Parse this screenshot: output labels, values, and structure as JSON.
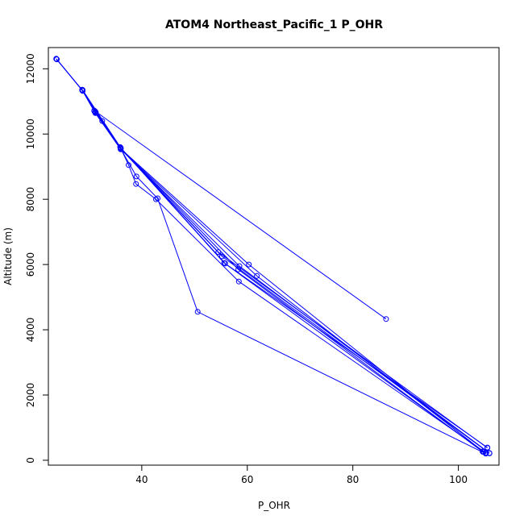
{
  "chart_data": {
    "type": "line",
    "title": "ATOM4 Northeast_Pacific_1 P_OHR",
    "xlabel": "P_OHR",
    "ylabel": "Altitude (m)",
    "xlim": [
      22.3,
      107.7
    ],
    "ylim": [
      -150,
      12650
    ],
    "x_ticks": [
      40,
      60,
      80,
      100
    ],
    "y_ticks": [
      0,
      2000,
      4000,
      6000,
      8000,
      10000,
      12000
    ],
    "grid": false,
    "series_color": "#0000ff",
    "marker": "open-circle",
    "series": [
      {
        "x": [
          23.8,
          28.7,
          31.2,
          36.0,
          39.0,
          43.0,
          50.6,
          105.2
        ],
        "y": [
          12300,
          11350,
          10650,
          9550,
          8700,
          8030,
          4550,
          200
        ]
      },
      {
        "x": [
          105.2,
          58.4,
          42.7,
          38.9,
          37.5,
          35.9,
          32.5,
          31.0,
          28.8,
          23.8
        ],
        "y": [
          230,
          5480,
          8000,
          8470,
          9050,
          9600,
          10400,
          10700,
          11320,
          12310
        ]
      },
      {
        "x": [
          23.9,
          28.8,
          31.3,
          36.0,
          55.6,
          104.8
        ],
        "y": [
          12290,
          11330,
          10660,
          9570,
          6050,
          250
        ]
      },
      {
        "x": [
          104.8,
          61.8,
          36.0,
          31.2,
          28.7
        ],
        "y": [
          260,
          5650,
          9530,
          10640,
          11360
        ]
      },
      {
        "x": [
          28.7,
          36.0,
          58.3,
          104.6
        ],
        "y": [
          11340,
          9560,
          5850,
          260
        ]
      },
      {
        "x": [
          104.6,
          60.3,
          36.0,
          28.8
        ],
        "y": [
          270,
          6000,
          9550,
          11330
        ]
      },
      {
        "x": [
          28.8,
          36.0,
          55.8,
          105.5
        ],
        "y": [
          11350,
          9580,
          6030,
          390
        ]
      },
      {
        "x": [
          105.5,
          54.5,
          36.0,
          31.2
        ],
        "y": [
          380,
          6380,
          9560,
          10680
        ]
      },
      {
        "x": [
          31.2,
          36.0,
          55.2,
          105.9
        ],
        "y": [
          10690,
          9550,
          6250,
          210
        ]
      },
      {
        "x": [
          105.9,
          58.5,
          36.0,
          31.0,
          86.3
        ],
        "y": [
          220,
          5950,
          9540,
          10720,
          4330
        ]
      }
    ]
  }
}
